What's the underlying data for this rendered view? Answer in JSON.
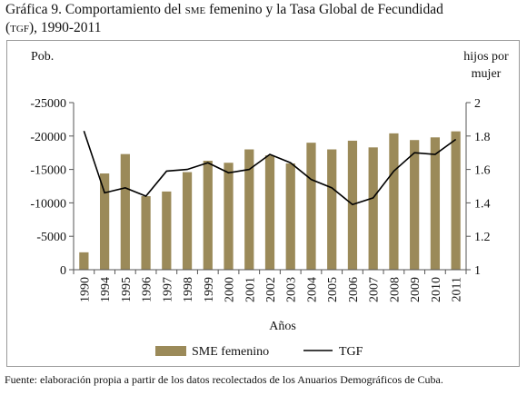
{
  "figure": {
    "title_part1": "Gráfica 9. Comportamiento del ",
    "title_sc1": "sme",
    "title_part2": " femenino y la Tasa Global de Fecundidad",
    "title_sc2": "(tgf)",
    "title_part3": ", 1990-2011",
    "source": "Fuente: elaboración propia a partir de los datos recolectados de los Anuarios Demográficos de Cuba."
  },
  "chart_data": {
    "type": "bar+line",
    "categories": [
      "1990",
      "1994",
      "1995",
      "1996",
      "1997",
      "1998",
      "1999",
      "2000",
      "2001",
      "2002",
      "2003",
      "2004",
      "2005",
      "2006",
      "2007",
      "2008",
      "2009",
      "2010",
      "2011"
    ],
    "series": [
      {
        "name": "SME femenino",
        "type": "bar",
        "axis": "left",
        "color": "#9b8a59",
        "values": [
          -2600,
          -14400,
          -17300,
          -11000,
          -11700,
          -14600,
          -16300,
          -16000,
          -18000,
          -17100,
          -15900,
          -19000,
          -18000,
          -19300,
          -18300,
          -20400,
          -19400,
          -19800,
          -20700
        ]
      },
      {
        "name": "TGF",
        "type": "line",
        "axis": "right",
        "color": "#000000",
        "values": [
          1.83,
          1.46,
          1.49,
          1.44,
          1.59,
          1.6,
          1.64,
          1.58,
          1.6,
          1.69,
          1.64,
          1.54,
          1.49,
          1.39,
          1.43,
          1.59,
          1.7,
          1.69,
          1.78
        ]
      }
    ],
    "y_left": {
      "label": "Pob.",
      "range": [
        0,
        -25000
      ],
      "ticks": [
        -25000,
        -20000,
        -15000,
        -10000,
        -5000,
        0
      ],
      "tick_labels": [
        "-25000",
        "-20000",
        "-15000",
        "-10000",
        "-5000",
        "0"
      ]
    },
    "y_right": {
      "label_line1": "hijos por",
      "label_line2": "mujer",
      "range": [
        1,
        2
      ],
      "ticks": [
        1,
        1.2,
        1.4,
        1.6,
        1.8,
        2
      ],
      "tick_labels": [
        "1",
        "1.2",
        "1.4",
        "1.6",
        "1.8",
        "2"
      ]
    },
    "xlabel": "Años",
    "grid": false,
    "legend": {
      "position": "bottom",
      "bar_label": "SME femenino",
      "line_label": "TGF"
    }
  }
}
